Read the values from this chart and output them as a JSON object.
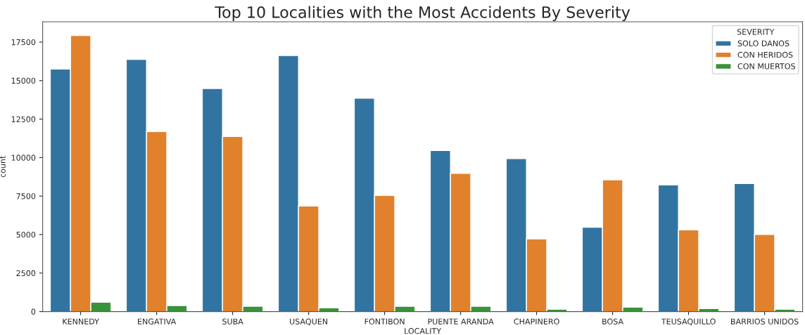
{
  "chart_data": {
    "type": "bar",
    "title": "Top 10 Localities with the Most Accidents By Severity",
    "xlabel": "LOCALITY",
    "ylabel": "count",
    "legend_title": "SEVERITY",
    "legend": "top right",
    "grid": false,
    "categories": [
      "KENNEDY",
      "ENGATIVA",
      "SUBA",
      "USAQUEN",
      "FONTIBON",
      "PUENTE ARANDA",
      "CHAPINERO",
      "BOSA",
      "TEUSAQUILLO",
      "BARRIOS UNIDOS"
    ],
    "series": [
      {
        "name": "SOLO DANOS",
        "color": "#3274a1",
        "values": [
          15750,
          16380,
          14490,
          16630,
          13860,
          10460,
          9930,
          5480,
          8220,
          8320
        ]
      },
      {
        "name": "CON HERIDOS",
        "color": "#e1812c",
        "values": [
          17930,
          11690,
          11370,
          6860,
          7540,
          8980,
          4720,
          8560,
          5310,
          5010
        ]
      },
      {
        "name": "CON MUERTOS",
        "color": "#3a923a",
        "values": [
          610,
          390,
          350,
          240,
          340,
          340,
          150,
          290,
          200,
          150
        ]
      }
    ],
    "ylim": [
      0,
      18820
    ],
    "yticks": [
      0,
      2500,
      5000,
      7500,
      10000,
      12500,
      15000,
      17500
    ]
  }
}
